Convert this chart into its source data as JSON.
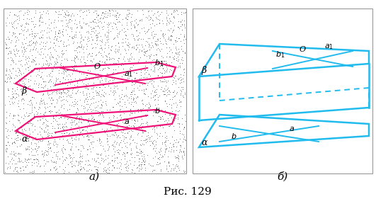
{
  "fig_width": 5.31,
  "fig_height": 2.98,
  "dpi": 100,
  "pink_color": "#EE1177",
  "cyan_color": "#22BBEE",
  "label_a": "а)",
  "label_b": "б)",
  "caption": "Рис. 129"
}
